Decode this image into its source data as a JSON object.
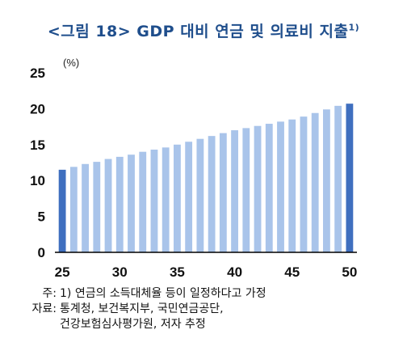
{
  "title_main": "<그림 18> GDP 대비 연금 및 의료비 지출",
  "title_sup": "1)",
  "chart_data": {
    "type": "bar",
    "unit": "(%)",
    "ylim": [
      0,
      25
    ],
    "yticks": [
      0,
      5,
      10,
      15,
      20,
      25
    ],
    "xticks": [
      "25",
      "30",
      "35",
      "40",
      "45",
      "50"
    ],
    "categories": [
      "25",
      "26",
      "27",
      "28",
      "29",
      "30",
      "31",
      "32",
      "33",
      "34",
      "35",
      "36",
      "37",
      "38",
      "39",
      "40",
      "41",
      "42",
      "43",
      "44",
      "45",
      "46",
      "47",
      "48",
      "49",
      "50"
    ],
    "values": [
      11.5,
      11.9,
      12.3,
      12.6,
      13.0,
      13.3,
      13.6,
      14.0,
      14.3,
      14.6,
      15.0,
      15.4,
      15.8,
      16.2,
      16.6,
      17.0,
      17.3,
      17.6,
      17.9,
      18.2,
      18.5,
      18.9,
      19.4,
      19.9,
      20.4,
      20.7
    ],
    "highlighted": [
      "25",
      "50"
    ],
    "colors": {
      "bar": "#a9c4ea",
      "highlight": "#3f6fbf",
      "axis": "#000000"
    },
    "grid": false
  },
  "notes": {
    "note_label": "주:",
    "note_text": "1) 연금의 소득대체율 등이 일정하다고 가정",
    "source_label": "자료:",
    "source_line1": "통계청, 보건복지부, 국민연금공단,",
    "source_line2": "건강보험심사평가원, 저자 추정"
  }
}
